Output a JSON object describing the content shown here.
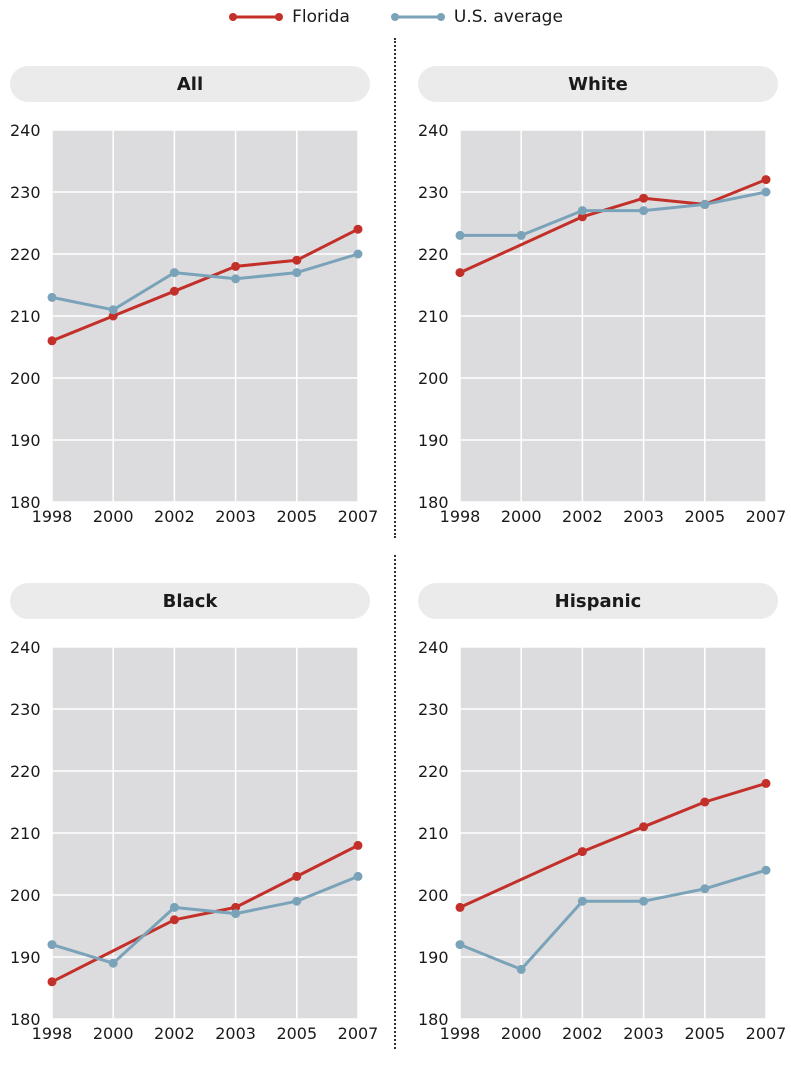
{
  "legend": [
    {
      "name": "Florida",
      "color": "#c3302a"
    },
    {
      "name": "U.S. average",
      "color": "#7aa3b9"
    }
  ],
  "chart_data": [
    {
      "type": "line",
      "title": "All",
      "categories": [
        "1998",
        "2000",
        "2002",
        "2003",
        "2005",
        "2007"
      ],
      "ylim": [
        180,
        240
      ],
      "yticks": [
        180,
        190,
        200,
        210,
        220,
        230,
        240
      ],
      "grid": true,
      "series": [
        {
          "name": "Florida",
          "color": "#c3302a",
          "values": [
            206,
            210,
            214,
            218,
            219,
            224
          ]
        },
        {
          "name": "U.S. average",
          "color": "#7aa3b9",
          "values": [
            213,
            211,
            217,
            216,
            217,
            220
          ]
        }
      ]
    },
    {
      "type": "line",
      "title": "White",
      "categories": [
        "1998",
        "2000",
        "2002",
        "2003",
        "2005",
        "2007"
      ],
      "ylim": [
        180,
        240
      ],
      "yticks": [
        180,
        190,
        200,
        210,
        220,
        230,
        240
      ],
      "grid": true,
      "series": [
        {
          "name": "Florida",
          "color": "#c3302a",
          "values": [
            217,
            null,
            226,
            229,
            228,
            232
          ]
        },
        {
          "name": "U.S. average",
          "color": "#7aa3b9",
          "values": [
            223,
            223,
            227,
            227,
            228,
            230
          ]
        }
      ]
    },
    {
      "type": "line",
      "title": "Black",
      "categories": [
        "1998",
        "2000",
        "2002",
        "2003",
        "2005",
        "2007"
      ],
      "ylim": [
        180,
        240
      ],
      "yticks": [
        180,
        190,
        200,
        210,
        220,
        230,
        240
      ],
      "grid": true,
      "series": [
        {
          "name": "Florida",
          "color": "#c3302a",
          "values": [
            186,
            null,
            196,
            198,
            203,
            208
          ]
        },
        {
          "name": "U.S. average",
          "color": "#7aa3b9",
          "values": [
            192,
            189,
            198,
            197,
            199,
            203
          ]
        }
      ]
    },
    {
      "type": "line",
      "title": "Hispanic",
      "categories": [
        "1998",
        "2000",
        "2002",
        "2003",
        "2005",
        "2007"
      ],
      "ylim": [
        180,
        240
      ],
      "yticks": [
        180,
        190,
        200,
        210,
        220,
        230,
        240
      ],
      "grid": true,
      "series": [
        {
          "name": "Florida",
          "color": "#c3302a",
          "values": [
            198,
            null,
            207,
            211,
            215,
            218
          ]
        },
        {
          "name": "U.S. average",
          "color": "#7aa3b9",
          "values": [
            192,
            188,
            199,
            199,
            201,
            204
          ]
        }
      ]
    }
  ]
}
